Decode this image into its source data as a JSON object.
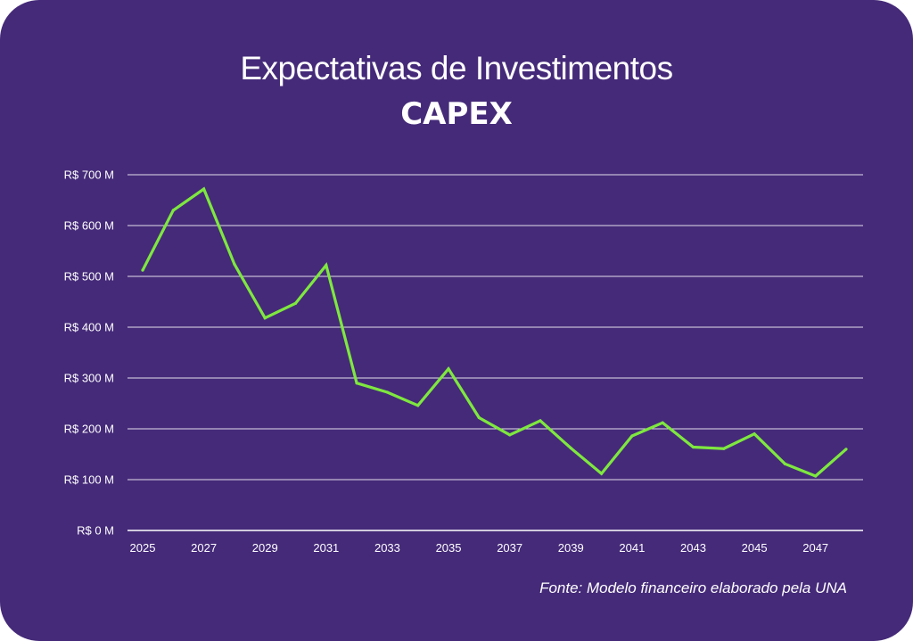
{
  "chart_data": {
    "type": "line",
    "title": "Expectativas de Investimentos",
    "subtitle": "CAPEX",
    "xlabel": "",
    "ylabel": "",
    "x": [
      2025,
      2026,
      2027,
      2028,
      2029,
      2030,
      2031,
      2032,
      2033,
      2034,
      2035,
      2036,
      2037,
      2038,
      2039,
      2040,
      2041,
      2042,
      2043,
      2044,
      2045,
      2046,
      2047,
      2048
    ],
    "x_tick_labels": [
      "2025",
      "2027",
      "2029",
      "2031",
      "2033",
      "2035",
      "2037",
      "2039",
      "2041",
      "2043",
      "2045",
      "2047"
    ],
    "y_tick_labels": [
      "R$ 0 M",
      "R$ 100 M",
      "R$ 200 M",
      "R$ 300 M",
      "R$ 400 M",
      "R$ 500 M",
      "R$ 600 M",
      "R$ 700 M"
    ],
    "y_ticks": [
      0,
      100,
      200,
      300,
      400,
      500,
      600,
      700
    ],
    "ylim": [
      0,
      700
    ],
    "xlim": [
      2025,
      2048
    ],
    "series": [
      {
        "values": [
          512,
          630,
          672,
          524,
          418,
          447,
          522,
          290,
          272,
          246,
          318,
          222,
          188,
          216,
          162,
          112,
          186,
          212,
          164,
          161,
          190,
          131,
          107,
          160
        ]
      }
    ],
    "grid": "horizontal",
    "line_color": "#7ee83f",
    "background_color": "#452a79",
    "grid_color": "#ffffff",
    "source": "Fonte: Modelo financeiro elaborado pela UNA"
  }
}
